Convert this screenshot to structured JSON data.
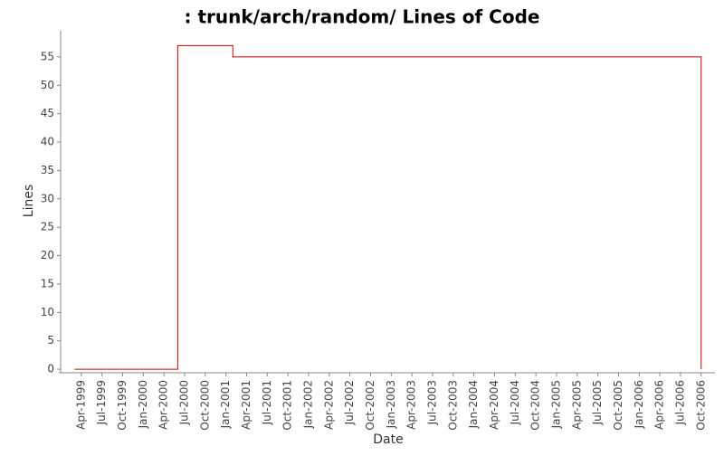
{
  "chart_data": {
    "type": "step",
    "title": ": trunk/arch/random/ Lines of Code",
    "x_label": "Date",
    "y_label": "Lines",
    "x": [
      "1999-03",
      "2000-06",
      "2001-02",
      "2006-10"
    ],
    "series": [
      {
        "name": "Lines",
        "color": "#cc0000",
        "values": [
          0,
          57,
          55,
          0
        ]
      }
    ],
    "xlim": [
      "1999-01",
      "2006-12"
    ],
    "xticks": [
      {
        "value": "1999-04",
        "label": "Apr-1999"
      },
      {
        "value": "1999-07",
        "label": "Jul-1999"
      },
      {
        "value": "1999-10",
        "label": "Oct-1999"
      },
      {
        "value": "2000-01",
        "label": "Jan-2000"
      },
      {
        "value": "2000-04",
        "label": "Apr-2000"
      },
      {
        "value": "2000-07",
        "label": "Jul-2000"
      },
      {
        "value": "2000-10",
        "label": "Oct-2000"
      },
      {
        "value": "2001-01",
        "label": "Jan-2001"
      },
      {
        "value": "2001-04",
        "label": "Apr-2001"
      },
      {
        "value": "2001-07",
        "label": "Jul-2001"
      },
      {
        "value": "2001-10",
        "label": "Oct-2001"
      },
      {
        "value": "2002-01",
        "label": "Jan-2002"
      },
      {
        "value": "2002-04",
        "label": "Apr-2002"
      },
      {
        "value": "2002-07",
        "label": "Jul-2002"
      },
      {
        "value": "2002-10",
        "label": "Oct-2002"
      },
      {
        "value": "2003-01",
        "label": "Jan-2003"
      },
      {
        "value": "2003-04",
        "label": "Apr-2003"
      },
      {
        "value": "2003-07",
        "label": "Jul-2003"
      },
      {
        "value": "2003-10",
        "label": "Oct-2003"
      },
      {
        "value": "2004-01",
        "label": "Jan-2004"
      },
      {
        "value": "2004-04",
        "label": "Apr-2004"
      },
      {
        "value": "2004-07",
        "label": "Jul-2004"
      },
      {
        "value": "2004-10",
        "label": "Oct-2004"
      },
      {
        "value": "2005-01",
        "label": "Jan-2005"
      },
      {
        "value": "2005-04",
        "label": "Apr-2005"
      },
      {
        "value": "2005-07",
        "label": "Jul-2005"
      },
      {
        "value": "2005-10",
        "label": "Oct-2005"
      },
      {
        "value": "2006-01",
        "label": "Jan-2006"
      },
      {
        "value": "2006-04",
        "label": "Apr-2006"
      },
      {
        "value": "2006-07",
        "label": "Jul-2006"
      },
      {
        "value": "2006-10",
        "label": "Oct-2006"
      }
    ],
    "ylim": [
      -0.3,
      59.6
    ],
    "yticks": [
      0,
      5,
      10,
      15,
      20,
      25,
      30,
      35,
      40,
      45,
      50,
      55
    ],
    "grid": false
  }
}
